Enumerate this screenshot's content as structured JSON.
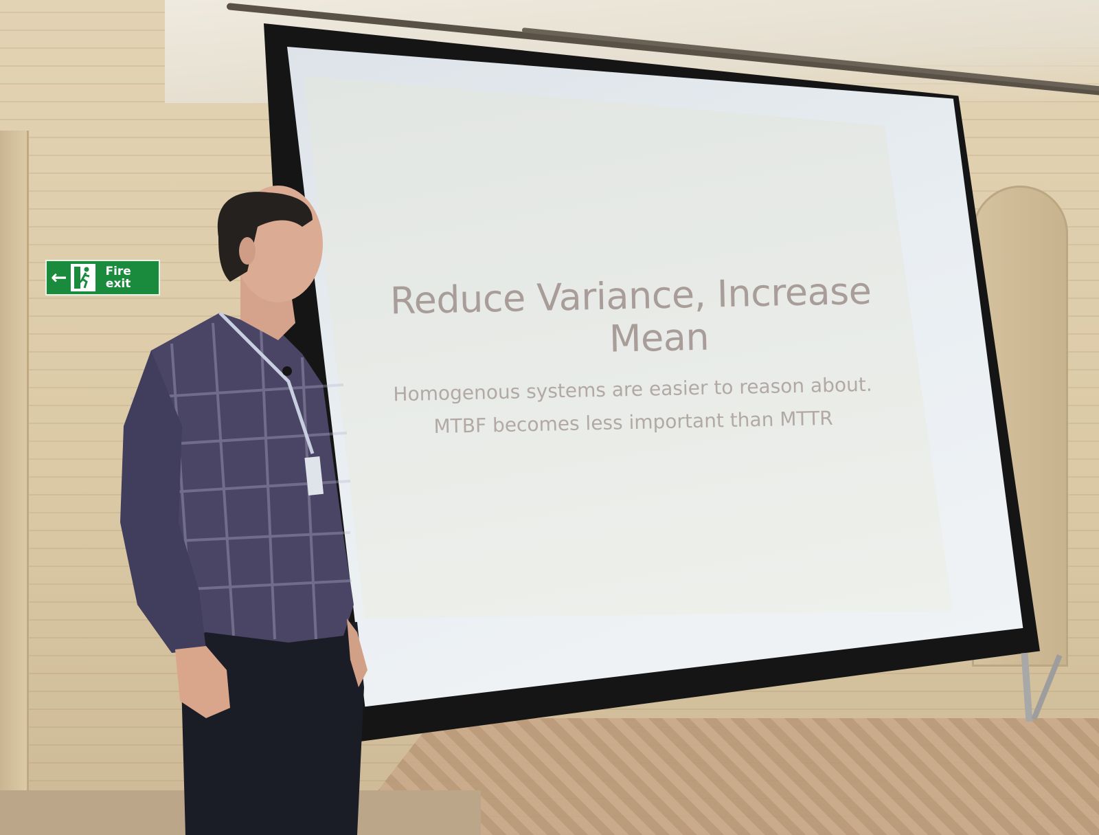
{
  "scene": {
    "description_colors": {
      "wall": "#dccaa6",
      "screen": "#e9eef2",
      "slide_text": "#a89d99",
      "sign": "#1a8a3c"
    }
  },
  "fire_sign": {
    "arrow": "←",
    "line1": "Fire",
    "line2": "exit",
    "runner_icon": "running-person-icon"
  },
  "slide": {
    "title_line1": "Reduce Variance, Increase",
    "title_line2": "Mean",
    "line1": "Homogenous systems are easier to reason about.",
    "line2": "MTBF becomes less important than MTTR"
  }
}
